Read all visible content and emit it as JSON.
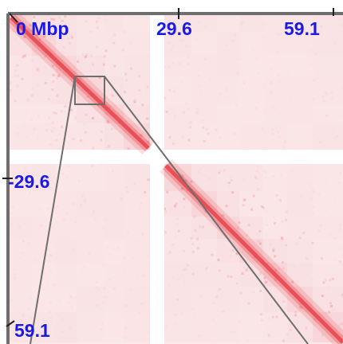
{
  "viewer": {
    "colors": {
      "background": "#ffffff",
      "heatmap_base": "#fbe9ea",
      "heatmap_dense": "#f6c9cc",
      "diagonal": "#e8474f",
      "axis_label": "#1a1ae6",
      "frame": "#6e6e6e"
    },
    "top_axis": {
      "start_label": "0 Mbp",
      "mid_label": "29.6",
      "end_label": "59.1"
    },
    "left_axis": {
      "mid_label": "-29.6",
      "end_label": "59.1"
    }
  }
}
